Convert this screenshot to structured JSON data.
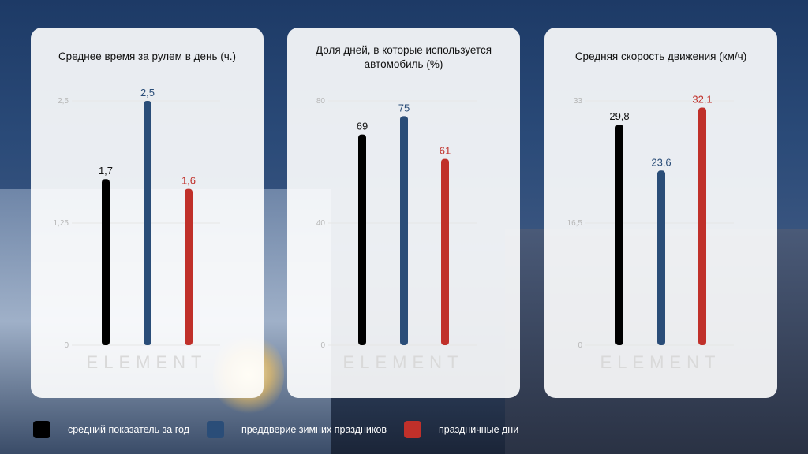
{
  "legend": [
    {
      "label": "— средний показатель за год",
      "color": "#000000"
    },
    {
      "label": "— преддверие зимних праздников",
      "color": "#2a4d78"
    },
    {
      "label": "— праздничные дни",
      "color": "#c0302a"
    }
  ],
  "watermark": "ELEMENT",
  "chart_data": [
    {
      "type": "bar",
      "title": "Среднее время за рулем в день (ч.)",
      "ylim": [
        0,
        2.5
      ],
      "yticks": [
        "0",
        "1,25",
        "2,5"
      ],
      "values": [
        1.7,
        2.5,
        1.6
      ],
      "value_labels": [
        "1,7",
        "2,5",
        "1,6"
      ],
      "grid": true
    },
    {
      "type": "bar",
      "title": "Доля дней, в которые используется автомобиль (%)",
      "ylim": [
        0,
        80
      ],
      "yticks": [
        "0",
        "40",
        "80"
      ],
      "values": [
        69,
        75,
        61
      ],
      "value_labels": [
        "69",
        "75",
        "61"
      ],
      "grid": true
    },
    {
      "type": "bar",
      "title": "Средняя скорость движения (км/ч)",
      "ylim": [
        0,
        33
      ],
      "yticks": [
        "0",
        "16,5",
        "33"
      ],
      "values": [
        29.8,
        23.6,
        32.1
      ],
      "value_labels": [
        "29,8",
        "23,6",
        "32,1"
      ],
      "grid": true
    }
  ]
}
